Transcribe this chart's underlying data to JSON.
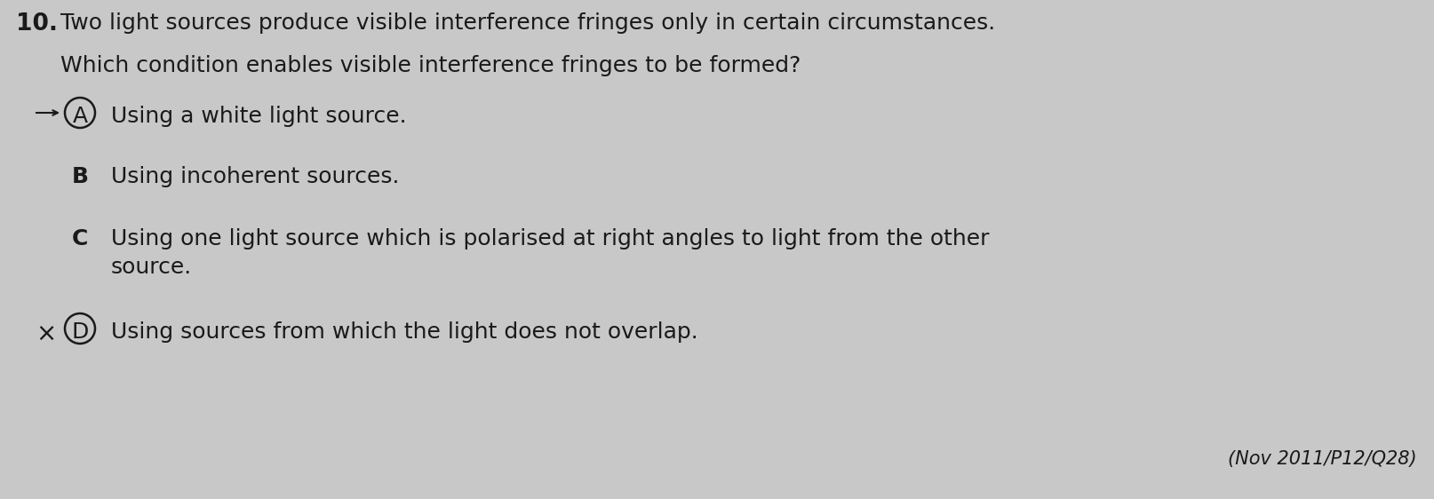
{
  "background_color": "#c8c8c8",
  "question_number": "10.",
  "question_line1": "Two light sources produce visible interference fringes only in certain circumstances.",
  "question_line2": "Which condition enables visible interference fringes to be formed?",
  "options": [
    {
      "letter": "A",
      "text": "Using a white light source.",
      "circled": true,
      "has_arrow": true,
      "has_cross": false,
      "bold_letter": false
    },
    {
      "letter": "B",
      "text": "Using incoherent sources.",
      "circled": false,
      "has_arrow": false,
      "has_cross": false,
      "bold_letter": true
    },
    {
      "letter": "C",
      "text_line1": "Using one light source which is polarised at right angles to light from the other",
      "text_line2": "source.",
      "circled": false,
      "has_arrow": false,
      "has_cross": false,
      "bold_letter": true,
      "multiline": true
    },
    {
      "letter": "D",
      "text": "Using sources from which the light does not overlap.",
      "circled": true,
      "has_arrow": false,
      "has_cross": true,
      "bold_letter": false
    }
  ],
  "reference": "(Nov 2011/P12/Q28)",
  "text_color": "#1a1a1a",
  "font_size_q_num": 19,
  "font_size_q_text": 18,
  "font_size_option_letter": 18,
  "font_size_option_text": 18,
  "font_size_ref": 15
}
